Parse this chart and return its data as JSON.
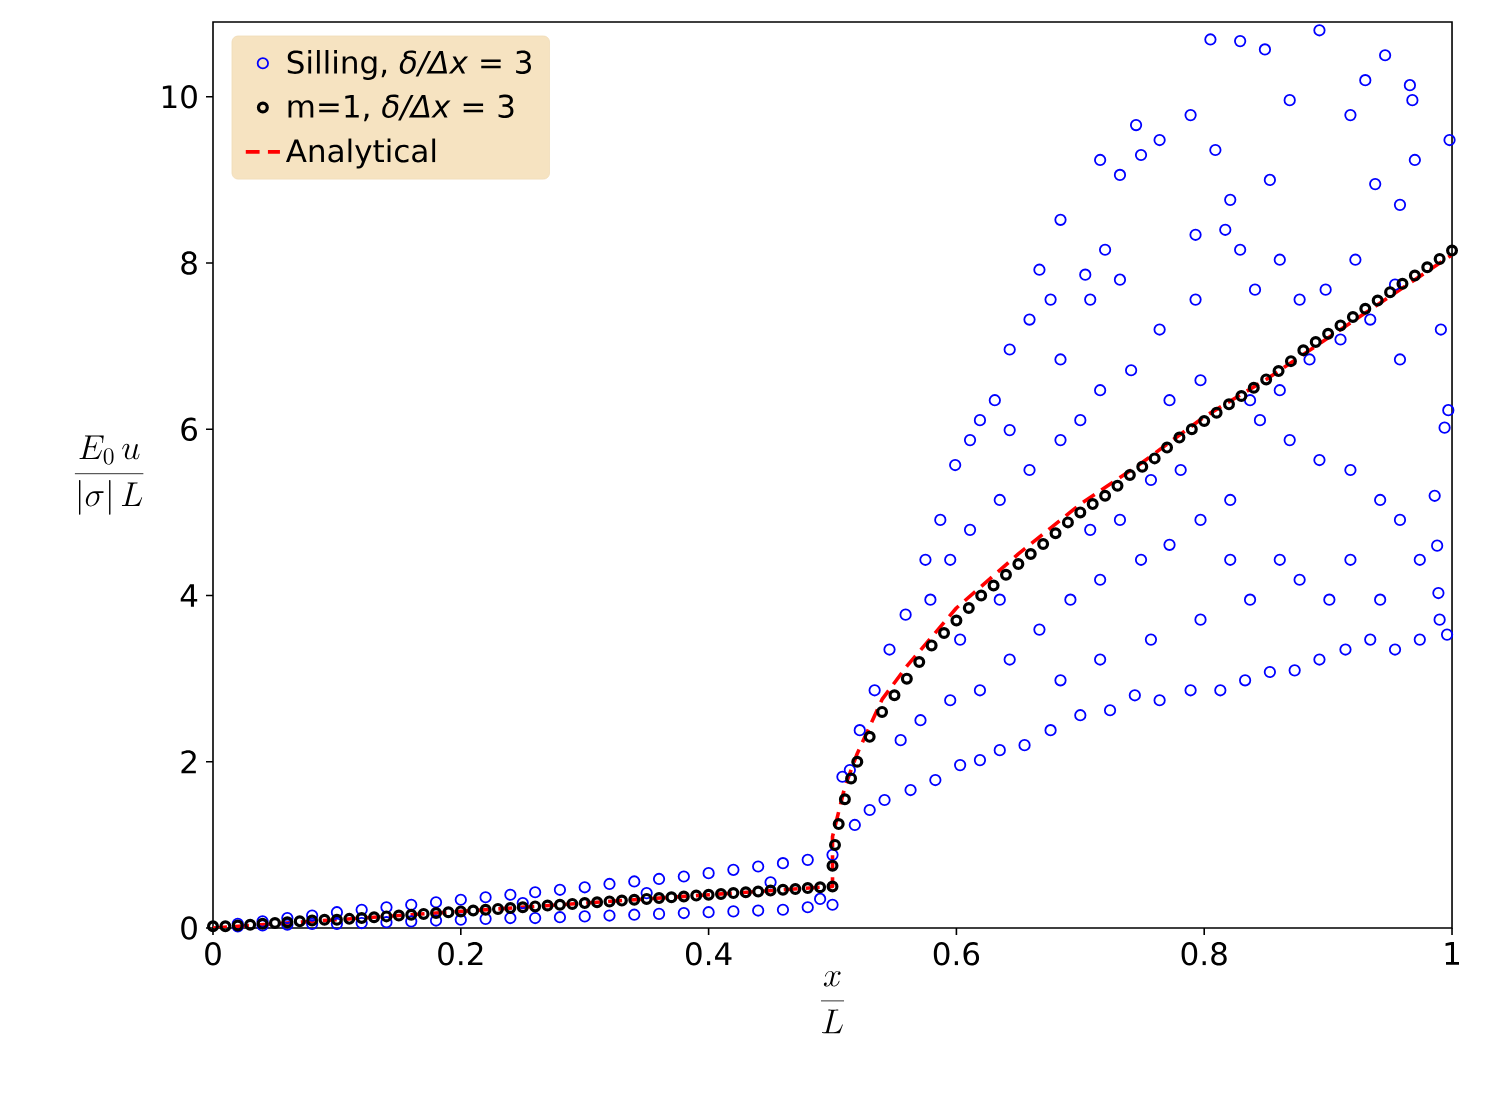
{
  "chart_data": {
    "type": "scatter",
    "xlabel": "\\frac{x}{L}",
    "ylabel": "\\frac{E_0\\, u}{|\\sigma|\\, L}",
    "xlim": [
      0,
      1
    ],
    "ylim": [
      0,
      10.9
    ],
    "xticks": [
      0,
      0.2,
      0.4,
      0.6,
      0.8,
      1
    ],
    "yticks": [
      0,
      2,
      4,
      6,
      8,
      10
    ],
    "legend": "top left",
    "series": [
      {
        "name": "Silling, *δ/Δx* = 3",
        "marker": "circle",
        "color": "#0000ff",
        "x": [
          0.02,
          0.02,
          0.04,
          0.04,
          0.06,
          0.06,
          0.08,
          0.08,
          0.1,
          0.1,
          0.12,
          0.12,
          0.14,
          0.14,
          0.16,
          0.16,
          0.18,
          0.18,
          0.2,
          0.2,
          0.22,
          0.22,
          0.24,
          0.24,
          0.26,
          0.26,
          0.28,
          0.28,
          0.3,
          0.3,
          0.32,
          0.32,
          0.34,
          0.34,
          0.36,
          0.36,
          0.38,
          0.38,
          0.4,
          0.4,
          0.42,
          0.42,
          0.44,
          0.44,
          0.46,
          0.46,
          0.48,
          0.48,
          0.5,
          0.5,
          0.25,
          0.35,
          0.45,
          0.49,
          0.998,
          0.991,
          0.997,
          0.994,
          0.996,
          0.989,
          0.988,
          0.986,
          0.966,
          0.968,
          0.97,
          0.958,
          0.954,
          0.946,
          0.93,
          0.938,
          0.918,
          0.922,
          0.898,
          0.877,
          0.861,
          0.841,
          0.829,
          0.817,
          0.809,
          0.789,
          0.764,
          0.745,
          0.716,
          0.829,
          0.805,
          0.849,
          0.893,
          0.869,
          0.853,
          0.821,
          0.793,
          0.749,
          0.732,
          0.72,
          0.708,
          0.704,
          0.684,
          0.676,
          0.659,
          0.667,
          0.643,
          0.631,
          0.619,
          0.611,
          0.599,
          0.587,
          0.575,
          0.559,
          0.546,
          0.534,
          0.522,
          0.514,
          0.508,
          0.99,
          0.974,
          0.954,
          0.934,
          0.914,
          0.893,
          0.873,
          0.853,
          0.833,
          0.813,
          0.789,
          0.764,
          0.744,
          0.724,
          0.7,
          0.676,
          0.655,
          0.635,
          0.619,
          0.603,
          0.583,
          0.563,
          0.542,
          0.53,
          0.518,
          0.958,
          0.942,
          0.918,
          0.893,
          0.869,
          0.845,
          0.821,
          0.797,
          0.772,
          0.749,
          0.716,
          0.692,
          0.667,
          0.643,
          0.619,
          0.595,
          0.571,
          0.555,
          0.918,
          0.877,
          0.837,
          0.797,
          0.757,
          0.716,
          0.684,
          0.974,
          0.942,
          0.901,
          0.861,
          0.821,
          0.781,
          0.757,
          0.732,
          0.708,
          0.635,
          0.603,
          0.958,
          0.934,
          0.91,
          0.885,
          0.861,
          0.837,
          0.797,
          0.772,
          0.764,
          0.741,
          0.716,
          0.7,
          0.684,
          0.659,
          0.635,
          0.611,
          0.595,
          0.579,
          0.732,
          0.684,
          0.643,
          0.793
        ],
        "values": [
          0.05,
          0.02,
          0.08,
          0.03,
          0.12,
          0.04,
          0.15,
          0.05,
          0.19,
          0.05,
          0.22,
          0.06,
          0.25,
          0.07,
          0.28,
          0.08,
          0.31,
          0.09,
          0.34,
          0.1,
          0.37,
          0.11,
          0.4,
          0.12,
          0.43,
          0.12,
          0.46,
          0.13,
          0.49,
          0.14,
          0.53,
          0.15,
          0.56,
          0.16,
          0.59,
          0.17,
          0.62,
          0.18,
          0.66,
          0.19,
          0.7,
          0.2,
          0.74,
          0.21,
          0.78,
          0.22,
          0.82,
          0.25,
          0.88,
          0.28,
          0.3,
          0.42,
          0.55,
          0.35,
          9.48,
          7.2,
          6.23,
          6.02,
          3.53,
          4.03,
          4.6,
          5.2,
          10.14,
          9.96,
          9.24,
          8.7,
          7.74,
          10.5,
          10.2,
          8.95,
          9.78,
          8.04,
          7.68,
          7.56,
          8.04,
          7.68,
          8.16,
          8.4,
          9.36,
          9.78,
          9.48,
          9.66,
          9.24,
          10.67,
          10.69,
          10.57,
          10.8,
          9.96,
          9.0,
          8.76,
          8.34,
          9.3,
          9.06,
          8.16,
          7.56,
          7.86,
          8.52,
          7.56,
          7.32,
          7.92,
          6.96,
          6.35,
          6.11,
          5.87,
          5.57,
          4.91,
          4.43,
          3.77,
          3.35,
          2.86,
          2.38,
          1.9,
          1.82,
          3.71,
          3.47,
          3.35,
          3.47,
          3.35,
          3.23,
          3.1,
          3.08,
          2.98,
          2.86,
          2.86,
          2.74,
          2.8,
          2.62,
          2.56,
          2.38,
          2.2,
          2.14,
          2.02,
          1.96,
          1.78,
          1.66,
          1.54,
          1.42,
          1.24,
          4.91,
          5.15,
          5.51,
          5.63,
          5.87,
          6.11,
          5.15,
          4.91,
          4.61,
          4.43,
          4.19,
          3.95,
          3.59,
          3.23,
          2.86,
          2.74,
          2.5,
          2.26,
          4.43,
          4.19,
          3.95,
          3.71,
          3.47,
          3.23,
          2.98,
          4.43,
          3.95,
          3.95,
          4.43,
          4.43,
          5.51,
          5.39,
          4.91,
          4.79,
          3.95,
          3.47,
          6.84,
          7.32,
          7.08,
          6.84,
          6.47,
          6.35,
          6.59,
          6.35,
          7.2,
          6.71,
          6.47,
          6.11,
          5.87,
          5.51,
          5.15,
          4.79,
          4.43,
          3.95,
          7.8,
          6.84,
          5.99,
          7.56
        ]
      },
      {
        "name": "m=1, *δ/Δx* = 3",
        "marker": "circle",
        "color": "#000000",
        "x": [
          0,
          0.01,
          0.02,
          0.03,
          0.04,
          0.05,
          0.06,
          0.07,
          0.08,
          0.09,
          0.1,
          0.11,
          0.12,
          0.13,
          0.14,
          0.15,
          0.16,
          0.17,
          0.18,
          0.19,
          0.2,
          0.21,
          0.22,
          0.23,
          0.24,
          0.25,
          0.26,
          0.27,
          0.28,
          0.29,
          0.3,
          0.31,
          0.32,
          0.33,
          0.34,
          0.35,
          0.36,
          0.37,
          0.38,
          0.39,
          0.4,
          0.41,
          0.42,
          0.43,
          0.44,
          0.45,
          0.46,
          0.47,
          0.48,
          0.49,
          0.5,
          0.5,
          0.502,
          0.505,
          0.51,
          0.515,
          0.52,
          0.53,
          0.54,
          0.55,
          0.56,
          0.57,
          0.58,
          0.59,
          0.6,
          0.61,
          0.62,
          0.63,
          0.64,
          0.65,
          0.66,
          0.67,
          0.68,
          0.69,
          0.7,
          0.71,
          0.72,
          0.73,
          0.74,
          0.75,
          0.76,
          0.77,
          0.78,
          0.79,
          0.8,
          0.81,
          0.82,
          0.83,
          0.84,
          0.85,
          0.86,
          0.87,
          0.88,
          0.89,
          0.9,
          0.91,
          0.92,
          0.93,
          0.94,
          0.95,
          0.96,
          0.97,
          0.98,
          0.99,
          1
        ],
        "values": [
          0.02,
          0.02,
          0.03,
          0.04,
          0.05,
          0.06,
          0.07,
          0.08,
          0.09,
          0.1,
          0.1,
          0.11,
          0.12,
          0.13,
          0.14,
          0.15,
          0.16,
          0.17,
          0.18,
          0.19,
          0.2,
          0.21,
          0.22,
          0.23,
          0.24,
          0.25,
          0.26,
          0.27,
          0.28,
          0.29,
          0.3,
          0.31,
          0.32,
          0.33,
          0.34,
          0.35,
          0.36,
          0.37,
          0.38,
          0.39,
          0.4,
          0.41,
          0.42,
          0.43,
          0.44,
          0.45,
          0.46,
          0.47,
          0.48,
          0.49,
          0.5,
          0.75,
          1.0,
          1.25,
          1.55,
          1.8,
          2.0,
          2.3,
          2.6,
          2.8,
          3.0,
          3.2,
          3.4,
          3.55,
          3.7,
          3.85,
          4.0,
          4.12,
          4.25,
          4.38,
          4.5,
          4.62,
          4.75,
          4.88,
          5.0,
          5.1,
          5.2,
          5.32,
          5.45,
          5.55,
          5.65,
          5.78,
          5.9,
          6.0,
          6.1,
          6.2,
          6.3,
          6.4,
          6.5,
          6.6,
          6.7,
          6.82,
          6.95,
          7.05,
          7.15,
          7.25,
          7.35,
          7.45,
          7.55,
          7.65,
          7.75,
          7.85,
          7.95,
          8.05,
          8.15
        ]
      },
      {
        "name": "Analytical",
        "type": "line",
        "line_style": "dashed",
        "color": "#ff0000",
        "x": [
          0,
          0.5,
          0.5,
          0.51,
          0.52,
          0.54,
          0.56,
          0.58,
          0.6,
          0.65,
          0.7,
          0.75,
          0.8,
          0.85,
          0.9,
          0.95,
          1
        ],
        "values": [
          0,
          0.5,
          1.1,
          1.7,
          2.1,
          2.75,
          3.15,
          3.5,
          3.85,
          4.5,
          5.1,
          5.6,
          6.15,
          6.6,
          7.1,
          7.6,
          8.1
        ]
      }
    ]
  }
}
